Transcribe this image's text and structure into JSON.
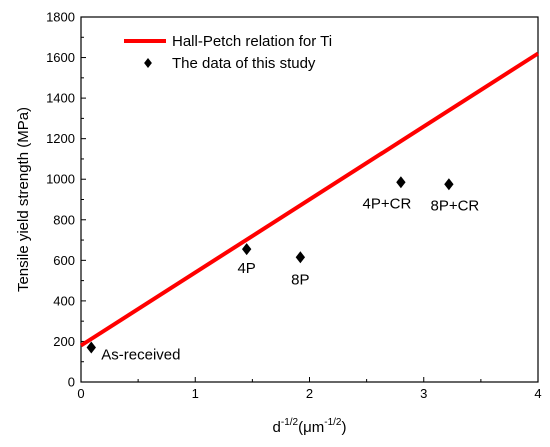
{
  "chart_data": {
    "type": "scatter",
    "xlabel": "d",
    "xlabel_sup1": "-1/2",
    "xlabel_unit_open": "(μm",
    "xlabel_sup2": "-1/2",
    "xlabel_unit_close": ")",
    "ylabel": "Tensile yield strength (MPa)",
    "xlim": [
      0,
      4
    ],
    "ylim": [
      0,
      1800
    ],
    "x_ticks": [
      0,
      1,
      2,
      3,
      4
    ],
    "y_ticks": [
      0,
      200,
      400,
      600,
      800,
      1000,
      1200,
      1400,
      1600,
      1800
    ],
    "grid": false,
    "legend_position": "top-left",
    "series": [
      {
        "name": "Hall-Petch relation for Ti",
        "kind": "line",
        "color": "#ff0000",
        "x": [
          0,
          4
        ],
        "y": [
          180,
          1620
        ]
      },
      {
        "name": "The data of this study",
        "kind": "scatter",
        "marker": "diamond",
        "color": "#000000",
        "points": [
          {
            "x": 0.09,
            "y": 170,
            "label": "As-received"
          },
          {
            "x": 1.45,
            "y": 655,
            "label": "4P"
          },
          {
            "x": 1.92,
            "y": 615,
            "label": "8P"
          },
          {
            "x": 2.8,
            "y": 985,
            "label": "4P+CR"
          },
          {
            "x": 3.22,
            "y": 975,
            "label": "8P+CR"
          }
        ]
      }
    ]
  }
}
